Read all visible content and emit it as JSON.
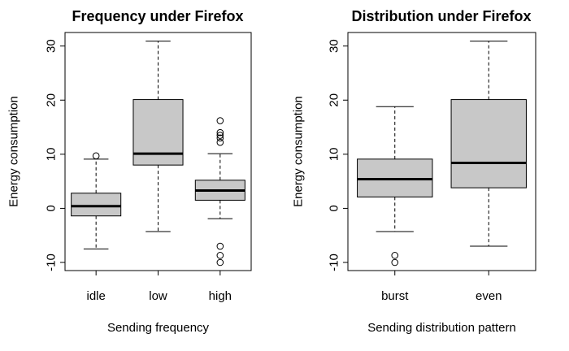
{
  "chart_data": [
    {
      "type": "boxplot",
      "title": "Frequency under Firefox",
      "xlabel": "Sending frequency",
      "ylabel": "Energy consumption",
      "ylim": [
        -11.5,
        32.5
      ],
      "yticks": [
        -10,
        0,
        10,
        20,
        30
      ],
      "grid": false,
      "categories": [
        "idle",
        "low",
        "high"
      ],
      "boxes": [
        {
          "min": -7.5,
          "q1": -1.4,
          "median": 0.4,
          "q3": 2.8,
          "max": 9.1,
          "outliers": [
            9.7
          ]
        },
        {
          "min": -4.3,
          "q1": 8.0,
          "median": 10.1,
          "q3": 20.1,
          "max": 30.9,
          "outliers": []
        },
        {
          "min": -1.9,
          "q1": 1.5,
          "median": 3.3,
          "q3": 5.2,
          "max": 10.1,
          "outliers": [
            16.2,
            14.0,
            13.5,
            13.0,
            12.2,
            -7.0,
            -8.7,
            -10.0
          ]
        }
      ]
    },
    {
      "type": "boxplot",
      "title": "Distribution under Firefox",
      "xlabel": "Sending distribution pattern",
      "ylabel": "Energy consumption",
      "ylim": [
        -11.5,
        32.5
      ],
      "yticks": [
        -10,
        0,
        10,
        20,
        30
      ],
      "grid": false,
      "categories": [
        "burst",
        "even"
      ],
      "boxes": [
        {
          "min": -4.3,
          "q1": 2.1,
          "median": 5.4,
          "q3": 9.1,
          "max": 18.8,
          "outliers": [
            -8.7,
            -10.0
          ]
        },
        {
          "min": -7.0,
          "q1": 3.8,
          "median": 8.4,
          "q3": 20.1,
          "max": 30.9,
          "outliers": []
        }
      ]
    }
  ]
}
